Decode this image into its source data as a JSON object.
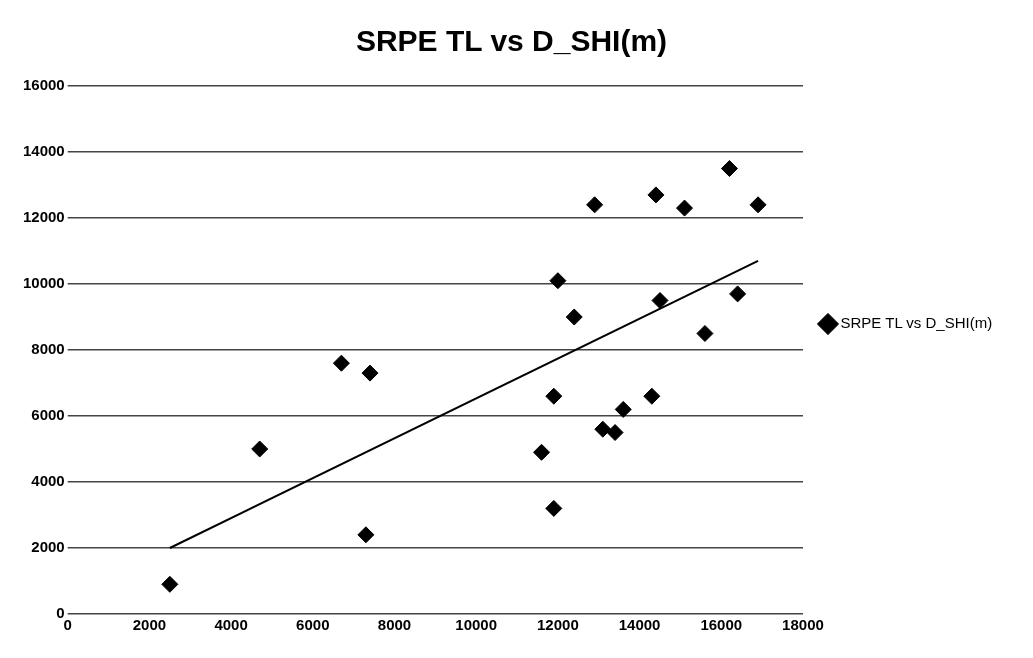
{
  "chart_data": {
    "type": "scatter",
    "title": "SRPE TL vs D_SHI(m)",
    "series": [
      {
        "name": "SRPE TL vs D_SHI(m)",
        "type": "scatter",
        "color": "#000000",
        "marker": "diamond",
        "x": [
          2500,
          4700,
          6700,
          7400,
          7300,
          12900,
          14400,
          15100,
          16200,
          16900,
          12000,
          12400,
          14500,
          16400,
          15600,
          11900,
          14300,
          13600,
          13100,
          13400,
          11600,
          11900
        ],
        "values": [
          900,
          5000,
          7600,
          7300,
          2400,
          12400,
          12700,
          12300,
          13500,
          12400,
          10100,
          9000,
          9500,
          9700,
          8500,
          6600,
          6600,
          6200,
          5600,
          5500,
          4900,
          3200
        ]
      },
      {
        "type": "line",
        "color": "#000000",
        "marker": "none",
        "line_style": "solid",
        "x": [
          2500,
          16900
        ],
        "values": [
          2000,
          10700
        ]
      }
    ],
    "xlim": [
      0,
      18000
    ],
    "xticks": [
      0,
      2000,
      4000,
      6000,
      8000,
      10000,
      12000,
      14000,
      16000,
      18000
    ],
    "ylim": [
      0,
      16000
    ],
    "yticks": [
      0,
      2000,
      4000,
      6000,
      8000,
      10000,
      12000,
      14000,
      16000
    ],
    "grid": "y",
    "legend": "right"
  }
}
